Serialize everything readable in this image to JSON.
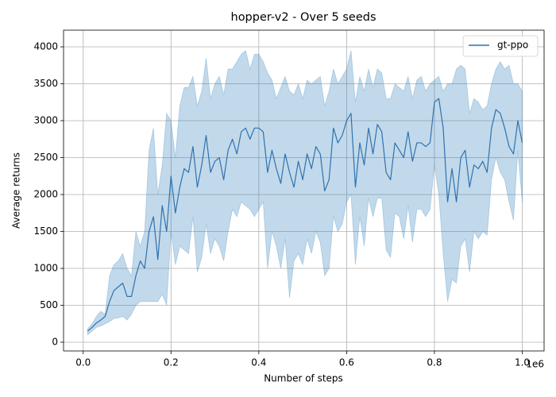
{
  "chart_data": {
    "type": "line",
    "title": "hopper-v2 - Over 5 seeds",
    "x_label": "Number of steps",
    "y_label": "Average returns",
    "x_offset_label": "1e6",
    "x": [
      10000,
      20000,
      30000,
      40000,
      50000,
      60000,
      70000,
      80000,
      90000,
      100000,
      110000,
      120000,
      130000,
      140000,
      150000,
      160000,
      170000,
      180000,
      190000,
      200000,
      210000,
      220000,
      230000,
      240000,
      250000,
      260000,
      270000,
      280000,
      290000,
      300000,
      310000,
      320000,
      330000,
      340000,
      350000,
      360000,
      370000,
      380000,
      390000,
      400000,
      410000,
      420000,
      430000,
      440000,
      450000,
      460000,
      470000,
      480000,
      490000,
      500000,
      510000,
      520000,
      530000,
      540000,
      550000,
      560000,
      570000,
      580000,
      590000,
      600000,
      610000,
      620000,
      630000,
      640000,
      650000,
      660000,
      670000,
      680000,
      690000,
      700000,
      710000,
      720000,
      730000,
      740000,
      750000,
      760000,
      770000,
      780000,
      790000,
      800000,
      810000,
      820000,
      830000,
      840000,
      850000,
      860000,
      870000,
      880000,
      890000,
      900000,
      910000,
      920000,
      930000,
      940000,
      950000,
      960000,
      970000,
      980000,
      990000,
      1000000
    ],
    "series": [
      {
        "name": "gt-ppo",
        "color": "#2f72b0",
        "band_color": "#1f77b4",
        "band_alpha": 0.28,
        "values": [
          150,
          200,
          260,
          300,
          350,
          550,
          700,
          750,
          800,
          620,
          620,
          900,
          1100,
          1000,
          1500,
          1700,
          1120,
          1850,
          1500,
          2250,
          1750,
          2100,
          2350,
          2300,
          2650,
          2100,
          2400,
          2800,
          2300,
          2450,
          2500,
          2200,
          2600,
          2750,
          2550,
          2850,
          2900,
          2750,
          2900,
          2900,
          2850,
          2300,
          2600,
          2350,
          2150,
          2550,
          2300,
          2100,
          2450,
          2200,
          2550,
          2350,
          2650,
          2550,
          2050,
          2200,
          2900,
          2700,
          2800,
          3000,
          3100,
          2100,
          2700,
          2400,
          2900,
          2550,
          2950,
          2850,
          2300,
          2200,
          2700,
          2600,
          2500,
          2850,
          2450,
          2700,
          2700,
          2650,
          2700,
          3250,
          3300,
          2900,
          1900,
          2350,
          1900,
          2500,
          2600,
          2100,
          2400,
          2350,
          2450,
          2300,
          2900,
          3150,
          3100,
          2900,
          2650,
          2550,
          3000,
          2700
        ],
        "upper": [
          180,
          250,
          350,
          420,
          380,
          900,
          1050,
          1100,
          1200,
          1000,
          900,
          1500,
          1300,
          1500,
          2600,
          2900,
          2000,
          2400,
          3100,
          3000,
          2500,
          3200,
          3450,
          3450,
          3600,
          3200,
          3400,
          3850,
          3300,
          3500,
          3600,
          3350,
          3700,
          3700,
          3800,
          3900,
          3950,
          3700,
          3900,
          3900,
          3800,
          3650,
          3550,
          3300,
          3450,
          3600,
          3400,
          3350,
          3500,
          3300,
          3550,
          3500,
          3550,
          3600,
          3200,
          3400,
          3700,
          3500,
          3600,
          3700,
          3950,
          3250,
          3600,
          3400,
          3700,
          3450,
          3700,
          3650,
          3300,
          3300,
          3500,
          3450,
          3400,
          3600,
          3300,
          3550,
          3600,
          3400,
          3500,
          3550,
          3600,
          3400,
          3500,
          3500,
          3700,
          3750,
          3700,
          3100,
          3300,
          3250,
          3150,
          3200,
          3500,
          3700,
          3800,
          3700,
          3750,
          3500,
          3500,
          3400
        ],
        "lower": [
          100,
          150,
          200,
          220,
          250,
          280,
          320,
          330,
          350,
          300,
          380,
          500,
          550,
          550,
          550,
          550,
          550,
          650,
          500,
          1500,
          1050,
          1300,
          1250,
          1200,
          1700,
          950,
          1150,
          1600,
          1200,
          1400,
          1300,
          1100,
          1500,
          1800,
          1700,
          1900,
          1850,
          1800,
          1700,
          1800,
          1900,
          1000,
          1500,
          1300,
          1000,
          1400,
          600,
          1100,
          1200,
          1050,
          1400,
          1200,
          1500,
          1350,
          900,
          1000,
          1700,
          1500,
          1600,
          1900,
          2000,
          1050,
          1700,
          1300,
          1950,
          1700,
          1950,
          1950,
          1250,
          1150,
          1750,
          1700,
          1400,
          1850,
          1350,
          1800,
          1800,
          1700,
          1800,
          2400,
          2000,
          1200,
          550,
          850,
          800,
          1300,
          1400,
          950,
          1500,
          1400,
          1500,
          1450,
          2200,
          2500,
          2300,
          2200,
          1900,
          1650,
          2600,
          1900
        ]
      }
    ],
    "xlim": [
      -44750,
      1049750
    ],
    "ylim": [
      -118,
      4226
    ],
    "xticks": [
      {
        "value": 0,
        "label": "0.0"
      },
      {
        "value": 200000,
        "label": "0.2"
      },
      {
        "value": 400000,
        "label": "0.4"
      },
      {
        "value": 600000,
        "label": "0.6"
      },
      {
        "value": 800000,
        "label": "0.8"
      },
      {
        "value": 1000000,
        "label": "1.0"
      }
    ],
    "yticks": [
      0,
      500,
      1000,
      1500,
      2000,
      2500,
      3000,
      3500,
      4000
    ],
    "grid": true,
    "legend": "upper right"
  }
}
